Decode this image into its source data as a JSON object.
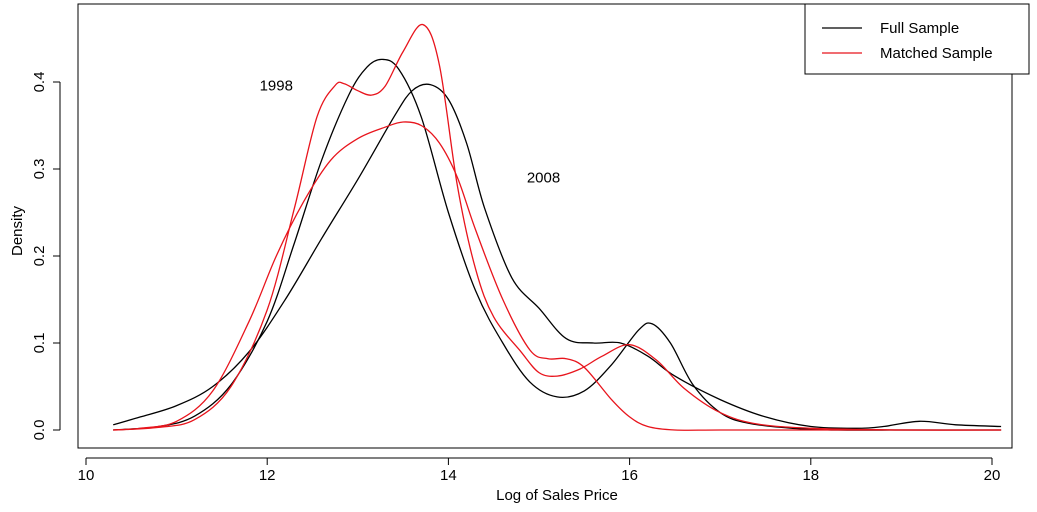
{
  "chart_data": {
    "type": "line",
    "xlabel": "Log of Sales Price",
    "ylabel": "Density",
    "xlim": [
      10,
      20.2
    ],
    "ylim": [
      0,
      0.47
    ],
    "x_ticks": [
      10,
      12,
      14,
      16,
      18,
      20
    ],
    "x_tick_labels": [
      "10",
      "12",
      "14",
      "16",
      "18",
      "20"
    ],
    "y_ticks": [
      0.0,
      0.1,
      0.2,
      0.3,
      0.4
    ],
    "y_tick_labels": [
      "0.0",
      "0.1",
      "0.2",
      "0.3",
      "0.4"
    ],
    "grid": false,
    "legend": {
      "position": "top-right",
      "entries": [
        {
          "label": "Full Sample",
          "color": "#000000"
        },
        {
          "label": "Matched Sample",
          "color": "#e8141c"
        }
      ]
    },
    "annotations": [
      {
        "text": "1998",
        "x": 12.1,
        "y": 0.396
      },
      {
        "text": "2008",
        "x": 15.05,
        "y": 0.29
      }
    ],
    "series": [
      {
        "name": "Full Sample",
        "year": "1998",
        "color": "#000000",
        "x": [
          10.3,
          10.8,
          11.2,
          11.6,
          12.0,
          12.3,
          12.6,
          12.9,
          13.1,
          13.27,
          13.45,
          13.7,
          14.0,
          14.3,
          14.6,
          14.9,
          15.2,
          15.5,
          15.8,
          16.1,
          16.25,
          16.45,
          16.7,
          17.0,
          17.3,
          17.8,
          18.3,
          19.0,
          19.5,
          20.1
        ],
        "y": [
          0.0,
          0.004,
          0.016,
          0.052,
          0.125,
          0.215,
          0.31,
          0.385,
          0.417,
          0.426,
          0.415,
          0.36,
          0.25,
          0.16,
          0.1,
          0.055,
          0.038,
          0.045,
          0.075,
          0.115,
          0.122,
          0.1,
          0.052,
          0.02,
          0.008,
          0.002,
          0.0,
          0.0,
          0.0,
          0.0
        ]
      },
      {
        "name": "Full Sample",
        "year": "2008",
        "color": "#000000",
        "x": [
          10.3,
          10.6,
          11.0,
          11.4,
          11.8,
          12.2,
          12.6,
          13.0,
          13.4,
          13.6,
          13.8,
          14.0,
          14.2,
          14.4,
          14.7,
          15.0,
          15.3,
          15.6,
          15.9,
          16.2,
          16.5,
          17.0,
          17.5,
          18.0,
          18.5,
          18.8,
          19.2,
          19.6,
          20.1
        ],
        "y": [
          0.006,
          0.015,
          0.028,
          0.05,
          0.09,
          0.15,
          0.22,
          0.288,
          0.36,
          0.39,
          0.397,
          0.38,
          0.33,
          0.255,
          0.175,
          0.14,
          0.105,
          0.1,
          0.1,
          0.085,
          0.062,
          0.035,
          0.015,
          0.004,
          0.002,
          0.004,
          0.01,
          0.006,
          0.004
        ]
      },
      {
        "name": "Matched Sample",
        "year": "1998",
        "color": "#e8141c",
        "x": [
          10.3,
          10.8,
          11.2,
          11.6,
          12.0,
          12.3,
          12.55,
          12.75,
          12.85,
          13.0,
          13.15,
          13.3,
          13.5,
          13.72,
          13.9,
          14.1,
          14.3,
          14.5,
          14.8,
          15.0,
          15.2,
          15.45,
          15.7,
          16.0,
          16.3,
          16.6,
          17.0,
          17.4,
          18.0,
          19.0,
          20.1
        ],
        "y": [
          0.0,
          0.003,
          0.012,
          0.05,
          0.138,
          0.255,
          0.36,
          0.396,
          0.398,
          0.39,
          0.385,
          0.395,
          0.435,
          0.466,
          0.42,
          0.28,
          0.185,
          0.13,
          0.09,
          0.066,
          0.062,
          0.07,
          0.085,
          0.098,
          0.08,
          0.048,
          0.02,
          0.007,
          0.002,
          0.0,
          0.0
        ]
      },
      {
        "name": "Matched Sample",
        "year": "2008",
        "color": "#e8141c",
        "x": [
          10.3,
          10.6,
          11.0,
          11.4,
          11.8,
          12.1,
          12.4,
          12.7,
          13.0,
          13.3,
          13.5,
          13.7,
          13.9,
          14.1,
          14.3,
          14.6,
          14.9,
          15.1,
          15.3,
          15.5,
          15.8,
          16.0,
          16.2,
          16.5,
          17.0,
          18.0,
          19.0,
          20.1
        ],
        "y": [
          0.0,
          0.002,
          0.01,
          0.045,
          0.125,
          0.2,
          0.262,
          0.31,
          0.335,
          0.348,
          0.354,
          0.35,
          0.33,
          0.29,
          0.23,
          0.15,
          0.092,
          0.082,
          0.082,
          0.072,
          0.035,
          0.015,
          0.004,
          0.0,
          0.0,
          0.0,
          0.0,
          0.0
        ]
      }
    ]
  }
}
